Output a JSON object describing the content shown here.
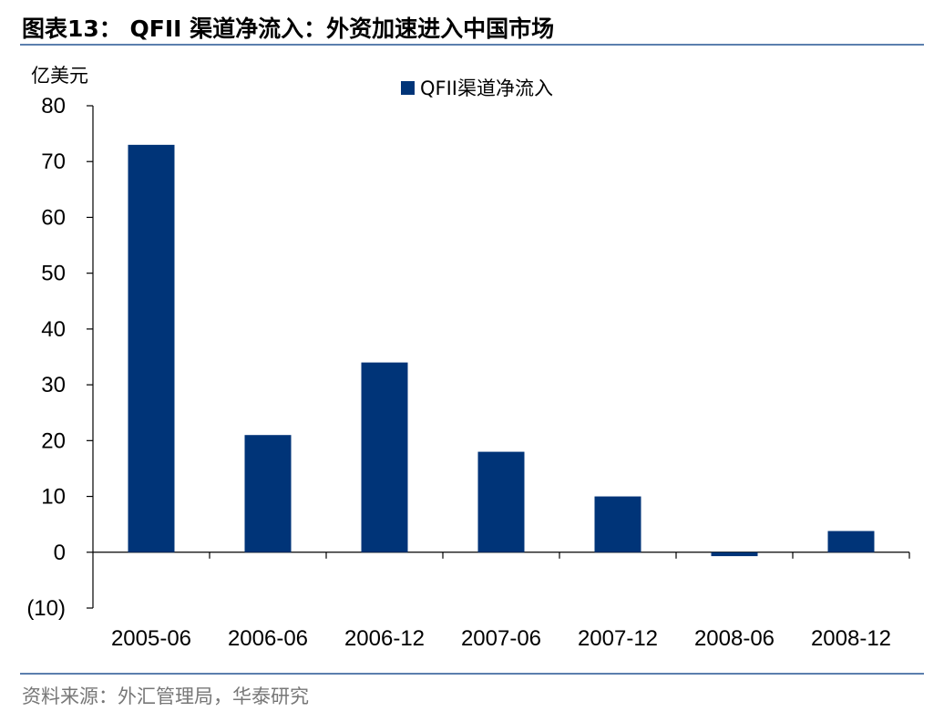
{
  "page": {
    "title": "图表13： QFII 渠道净流入：外资加速进入中国市场",
    "source": "资料来源：外汇管理局，华泰研究"
  },
  "colors": {
    "bar": "#003478",
    "rule": "#5b7fae",
    "source_text": "#777777"
  },
  "chart_data": {
    "type": "bar",
    "categories": [
      "2005-06",
      "2006-06",
      "2006-12",
      "2007-06",
      "2007-12",
      "2008-06",
      "2008-12"
    ],
    "series": [
      {
        "name": "QFII渠道净流入",
        "values": [
          73,
          21,
          34,
          18,
          10,
          -0.7,
          3.8
        ]
      }
    ],
    "ylabel": "亿美元",
    "ylim": [
      -10,
      80
    ],
    "yticks": [
      -10,
      0,
      10,
      20,
      30,
      40,
      50,
      60,
      70,
      80
    ],
    "ytick_labels": [
      "(10)",
      "0",
      "10",
      "20",
      "30",
      "40",
      "50",
      "60",
      "70",
      "80"
    ],
    "grid": false,
    "legend_position": "top-center"
  }
}
